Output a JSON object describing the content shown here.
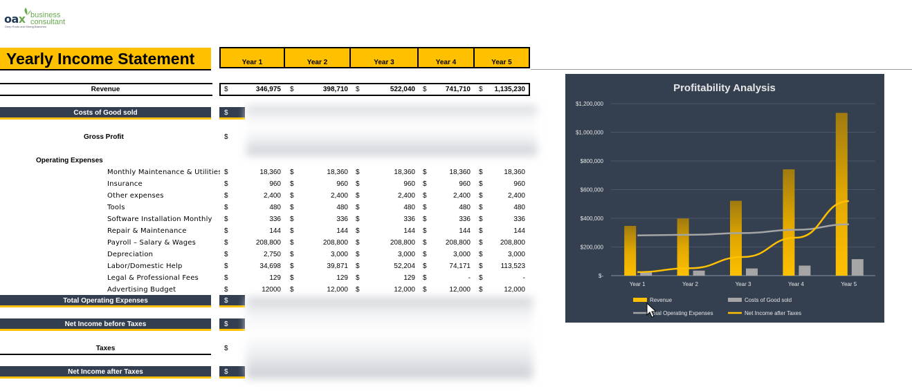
{
  "logo": {
    "word_a": "oa",
    "word_x": "x",
    "line1": "business",
    "line2": "consultant",
    "tagline": "Deep Roots and Strong Branches"
  },
  "title": "Yearly Income Statement",
  "years": [
    "Year 1",
    "Year 2",
    "Year 3",
    "Year 4",
    "Year 5"
  ],
  "currency": "$",
  "revenue": {
    "label": "Revenue",
    "values": [
      "346,975",
      "398,710",
      "522,040",
      "741,710",
      "1,135,230"
    ]
  },
  "costs_label": "Costs of Good sold",
  "gross_profit_label": "Gross Profit",
  "opex_label": "Operating Expenses",
  "opex_items": [
    {
      "label": "Monthly Maintenance & Utilities",
      "values": [
        "18,360",
        "18,360",
        "18,360",
        "18,360",
        "18,360"
      ]
    },
    {
      "label": "Insurance",
      "values": [
        "960",
        "960",
        "960",
        "960",
        "960"
      ]
    },
    {
      "label": "Other expenses",
      "values": [
        "2,400",
        "2,400",
        "2,400",
        "2,400",
        "2,400"
      ]
    },
    {
      "label": "Tools",
      "values": [
        "480",
        "480",
        "480",
        "480",
        "480"
      ]
    },
    {
      "label": "Software Installation Monthly",
      "values": [
        "336",
        "336",
        "336",
        "336",
        "336"
      ]
    },
    {
      "label": "Repair & Maintenance",
      "values": [
        "144",
        "144",
        "144",
        "144",
        "144"
      ]
    },
    {
      "label": "Payroll – Salary & Wages",
      "values": [
        "208,800",
        "208,800",
        "208,800",
        "208,800",
        "208,800"
      ]
    },
    {
      "label": "Depreciation",
      "values": [
        "2,750",
        "3,000",
        "3,000",
        "3,000",
        "3,000"
      ]
    },
    {
      "label": "Labor/Domestic Help",
      "values": [
        "34,698",
        "39,871",
        "52,204",
        "74,171",
        "113,523"
      ]
    },
    {
      "label": "Legal & Professional Fees",
      "values": [
        "129",
        "129",
        "129",
        "-",
        "-"
      ]
    },
    {
      "label": "Advertising Budget",
      "values": [
        "12000",
        "12,000",
        "12,000",
        "12,000",
        "12,000"
      ]
    }
  ],
  "total_opex_label": "Total Operating Expenses",
  "net_before_label": "Net Income before Taxes",
  "taxes_label": "Taxes",
  "net_after_label": "Net Income after Taxes",
  "chart_data": {
    "type": "bar",
    "title": "Profitability Analysis",
    "categories": [
      "Year 1",
      "Year 2",
      "Year 3",
      "Year 4",
      "Year 5"
    ],
    "y_ticks": [
      "$-",
      "$200,000",
      "$400,000",
      "$600,000",
      "$800,000",
      "$1,000,000",
      "$1,200,000"
    ],
    "ylim": [
      0,
      1200000
    ],
    "grid": true,
    "legend": "bottom",
    "series": [
      {
        "name": "Revenue",
        "kind": "bar",
        "color": "#ffc000",
        "values": [
          346975,
          398710,
          522040,
          741710,
          1135230
        ]
      },
      {
        "name": "Costs of Good sold",
        "kind": "bar",
        "color": "#a5a5a5",
        "values": [
          25000,
          35000,
          50000,
          70000,
          115000
        ]
      },
      {
        "name": "Total Operating Expenses",
        "kind": "line",
        "color": "#a5a5a5",
        "values": [
          281000,
          285000,
          297000,
          320000,
          358000
        ]
      },
      {
        "name": "Net Income after Taxes",
        "kind": "line",
        "color": "#ffc000",
        "values": [
          25000,
          52000,
          130000,
          265000,
          520000
        ]
      }
    ]
  }
}
